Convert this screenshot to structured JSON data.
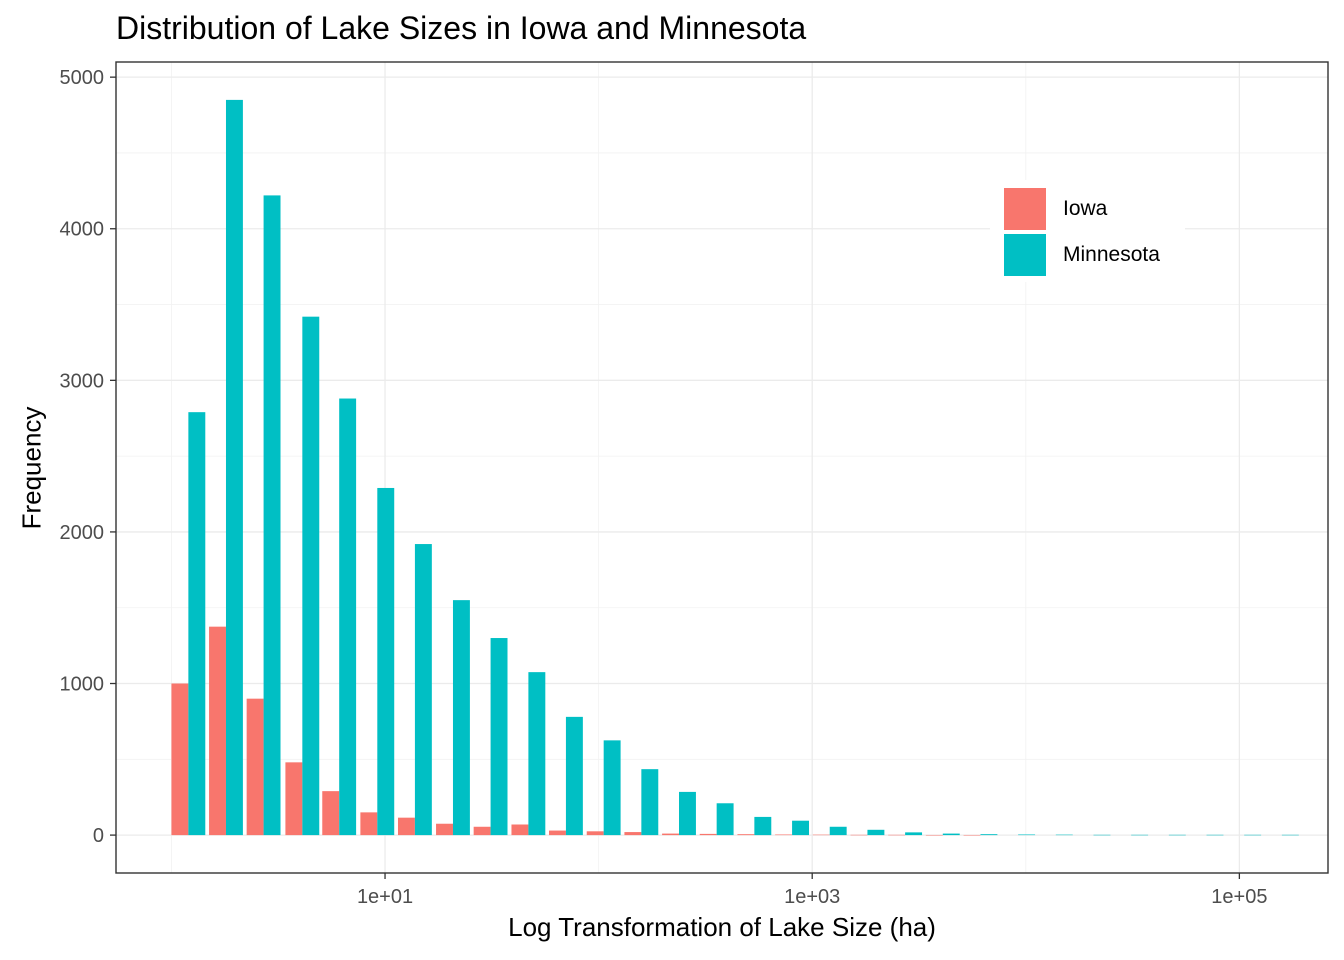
{
  "chart_data": {
    "type": "bar",
    "title": "Distribution of Lake Sizes in Iowa and Minnesota",
    "xlabel": "Log Transformation of Lake Size (ha)",
    "ylabel": "Frequency",
    "x_scale": "log10",
    "x_ticks": [
      10,
      1000,
      100000
    ],
    "x_tick_labels": [
      "1e+01",
      "1e+03",
      "1e+05"
    ],
    "xlim": [
      0.55,
      260000
    ],
    "y_ticks": [
      0,
      1000,
      2000,
      3000,
      4000,
      5000
    ],
    "y_tick_labels": [
      "0",
      "1000",
      "2000",
      "3000",
      "4000",
      "5000"
    ],
    "ylim": [
      -250,
      5100
    ],
    "grid": true,
    "legend_position": "top-right",
    "bin_centers": [
      1.2,
      1.8,
      2.7,
      4.1,
      6.1,
      9.2,
      13.8,
      20.8,
      31.2,
      46.9,
      70.3,
      105.6,
      158.5,
      237.9,
      357,
      536,
      805,
      1208,
      1814,
      2723,
      4087,
      6135,
      9209,
      13823,
      20750,
      31147,
      46755,
      70183,
      105350,
      158140
    ],
    "series": [
      {
        "name": "Iowa",
        "color": "#F8766D",
        "values": [
          1000,
          1375,
          900,
          480,
          290,
          150,
          115,
          75,
          55,
          70,
          30,
          25,
          20,
          10,
          8,
          6,
          4,
          3,
          2,
          2,
          1,
          1,
          0,
          0,
          0,
          0,
          0,
          0,
          0,
          0
        ]
      },
      {
        "name": "Minnesota",
        "color": "#00BFC4",
        "values": [
          2790,
          4850,
          4220,
          3420,
          2880,
          2290,
          1920,
          1550,
          1300,
          1075,
          780,
          625,
          435,
          285,
          210,
          120,
          95,
          55,
          35,
          18,
          10,
          6,
          4,
          3,
          2,
          2,
          2,
          2,
          2,
          2
        ]
      }
    ]
  }
}
